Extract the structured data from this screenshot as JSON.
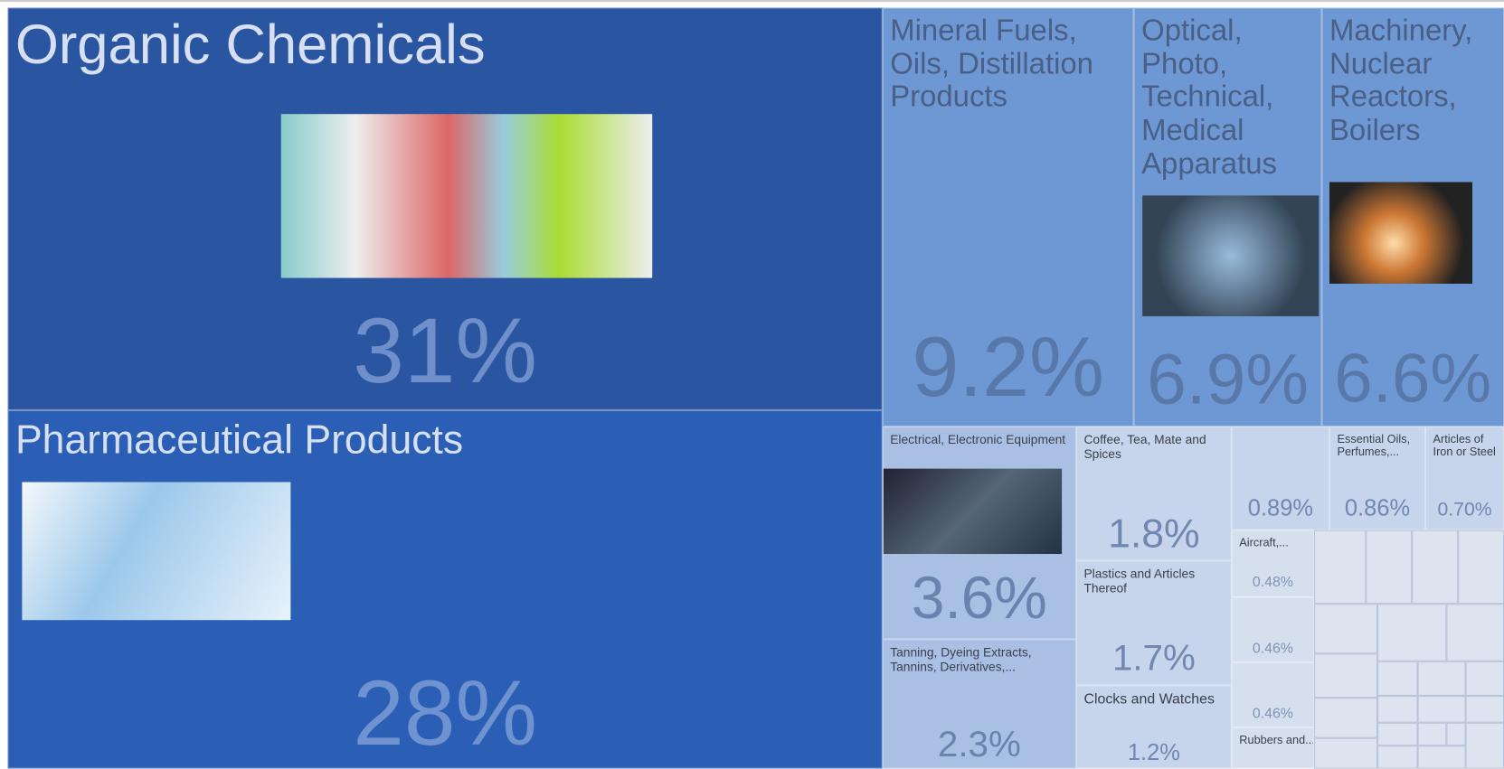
{
  "chart_data": {
    "type": "treemap",
    "categories": [
      "Organic Chemicals",
      "Pharmaceutical Products",
      "Mineral Fuels, Oils, Distillation Products",
      "Optical, Photo, Technical, Medical Apparatus",
      "Machinery, Nuclear Reactors, Boilers",
      "Electrical, Electronic Equipment",
      "Tanning, Dyeing Extracts, Tannins, Derivatives,...",
      "Coffee, Tea, Mate and Spices",
      "Plastics and Articles Thereof",
      "Clocks and Watches",
      null,
      "Essential Oils, Perfumes,...",
      "Articles of Iron or Steel",
      "Aircraft,...",
      null,
      null,
      "Rubbers and..."
    ],
    "values": [
      31,
      28,
      9.2,
      6.9,
      6.6,
      3.6,
      2.3,
      1.8,
      1.7,
      1.2,
      0.89,
      0.86,
      0.7,
      0.48,
      0.46,
      0.46,
      0.4
    ],
    "value_labels": [
      "31%",
      "28%",
      "9.2%",
      "6.9%",
      "6.6%",
      "3.6%",
      "2.3%",
      "1.8%",
      "1.7%",
      "1.2%",
      "0.89%",
      "0.86%",
      "0.70%",
      "0.48%",
      "0.46%",
      "0.46%",
      null
    ]
  }
}
